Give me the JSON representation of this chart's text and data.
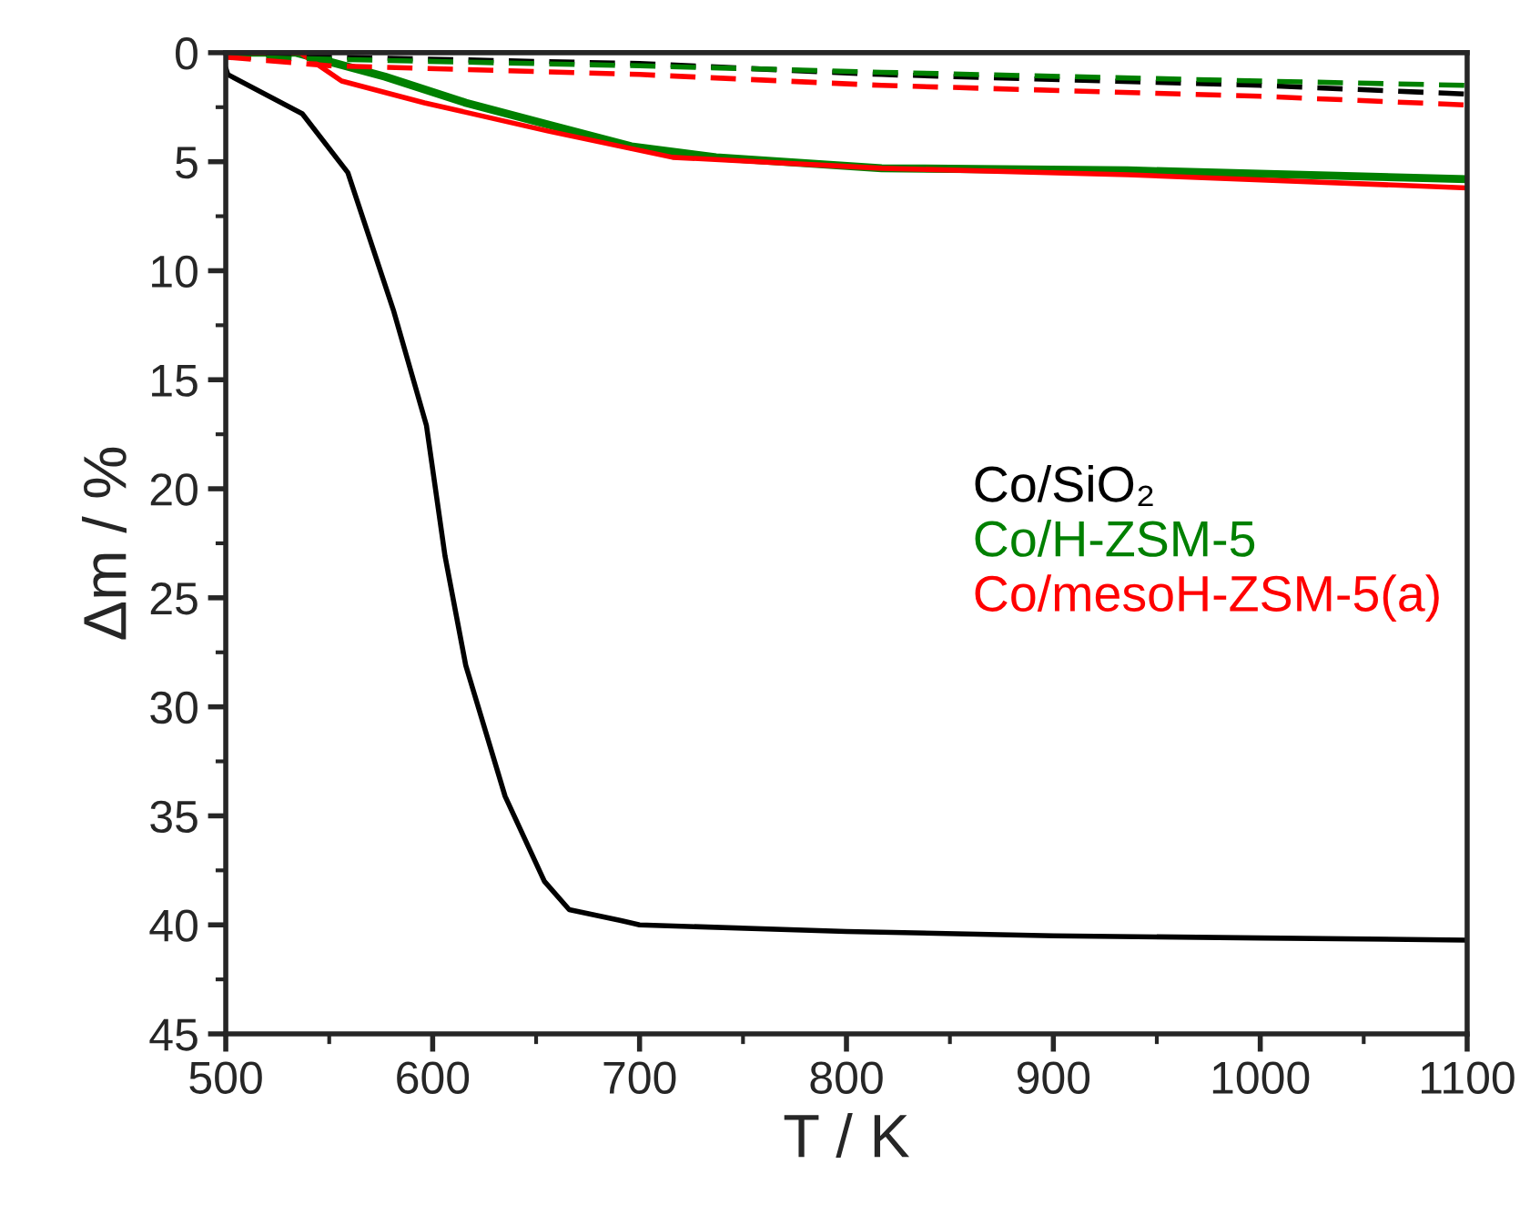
{
  "chart_data": {
    "type": "line",
    "xlabel": "T / K",
    "ylabel": "Δm / %",
    "xlim": [
      500,
      1100
    ],
    "xticks": [
      500,
      600,
      700,
      800,
      900,
      1000,
      1100
    ],
    "ylim": [
      45,
      0
    ],
    "yticks": [
      0,
      5,
      10,
      15,
      20,
      25,
      30,
      35,
      40,
      45
    ],
    "grid": false,
    "legend": "right",
    "marker": "none",
    "series": [
      {
        "name": "Co/SiO₂",
        "color": "#000000",
        "line_style": "solid",
        "x": [
          500,
          501,
          537,
          559,
          581,
          597,
          606,
          616,
          635,
          654,
          666,
          691,
          700,
          800,
          900,
          1000,
          1100
        ],
        "values": [
          0.7,
          1.0,
          2.8,
          5.5,
          11.8,
          17.1,
          23.1,
          28.1,
          34.1,
          38,
          39.3,
          39.8,
          40,
          40.3,
          40.5,
          40.6,
          40.7
        ]
      },
      {
        "name": "Co/H-ZSM-5",
        "color": "#008000",
        "line_style": "solid",
        "x": [
          500,
          534,
          577,
          616,
          656,
          696,
          737,
          817,
          936,
          1100
        ],
        "values": [
          0,
          0,
          1.1,
          2.3,
          3.3,
          4.3,
          4.8,
          5.3,
          5.4,
          5.8
        ]
      },
      {
        "name": "Co/mesoH-ZSM-5(a)",
        "color": "#ff0000",
        "line_style": "solid",
        "x": [
          500,
          536,
          556,
          596,
          656,
          716,
          817,
          936,
          1100
        ],
        "values": [
          0,
          0,
          1.3,
          2.3,
          3.6,
          4.8,
          5.3,
          5.6,
          6.2
        ]
      },
      {
        "color": "#000000",
        "line_style": "dashed",
        "x": [
          500,
          550,
          700,
          817,
          1000,
          1100
        ],
        "values": [
          0,
          0.2,
          0.5,
          1.0,
          1.5,
          1.9
        ]
      },
      {
        "color": "#008000",
        "line_style": "dashed",
        "x": [
          500,
          550,
          700,
          817,
          1000,
          1100
        ],
        "values": [
          0.2,
          0.3,
          0.6,
          0.9,
          1.3,
          1.5
        ]
      },
      {
        "color": "#ff0000",
        "line_style": "dashed",
        "x": [
          500,
          550,
          700,
          817,
          1000,
          1100
        ],
        "values": [
          0.2,
          0.6,
          1.0,
          1.5,
          2.0,
          2.4
        ]
      }
    ]
  }
}
